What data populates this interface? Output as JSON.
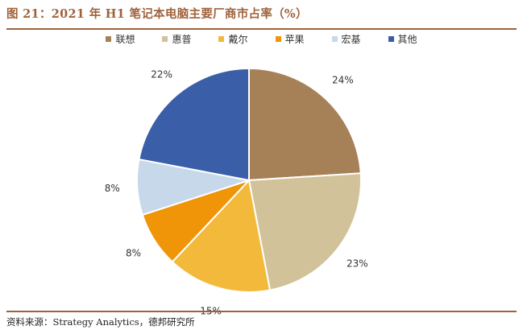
{
  "figure": {
    "title": "图 21：2021 年 H1 笔记本电脑主要厂商市占率（%）",
    "source": "资料来源：Strategy Analytics，德邦研究所",
    "accent_color": "#a0623a"
  },
  "chart_data": {
    "type": "pie",
    "title": "",
    "legend_position": "top",
    "slices": [
      {
        "label": "联想",
        "value": 24,
        "label_text": "24%",
        "color": "#a68158"
      },
      {
        "label": "惠普",
        "value": 23,
        "label_text": "23%",
        "color": "#d2c299"
      },
      {
        "label": "戴尔",
        "value": 15,
        "label_text": "15%",
        "color": "#f2b93b"
      },
      {
        "label": "苹果",
        "value": 8,
        "label_text": "8%",
        "color": "#f09408"
      },
      {
        "label": "宏基",
        "value": 8,
        "label_text": "8%",
        "color": "#c6d8e9"
      },
      {
        "label": "其他",
        "value": 22,
        "label_text": "22%",
        "color": "#3a5ea7"
      }
    ]
  }
}
